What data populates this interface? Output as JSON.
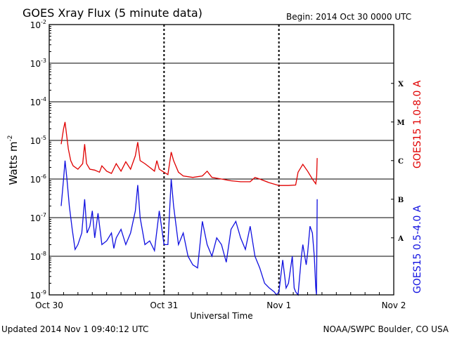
{
  "title": "GOES Xray Flux (5 minute data)",
  "begin_label": "Begin:  2014 Oct 30 0000 UTC",
  "updated": "Updated 2014 Nov  1 09:40:12 UTC",
  "credit": "NOAA/SWPC Boulder, CO USA",
  "colors": {
    "long": "#e00000",
    "short": "#1010e0",
    "axis": "#000000"
  },
  "chart_data": {
    "type": "line",
    "title": "GOES Xray Flux (5 minute data)",
    "xlabel": "Universal Time",
    "ylabel_base": "Watts m",
    "ylabel_sup": "-2",
    "yscale": "log",
    "ylim": [
      1e-09,
      0.01
    ],
    "xlim_hours": [
      0,
      72
    ],
    "grid": "horizontal",
    "x_ticks": [
      {
        "label": "Oct 30",
        "hour": 0
      },
      {
        "label": "Oct 31",
        "hour": 24
      },
      {
        "label": "Nov 1",
        "hour": 48
      },
      {
        "label": "Nov 2",
        "hour": 72
      }
    ],
    "y_ticks": [
      {
        "base": "10",
        "exp": "-9",
        "value": 1e-09
      },
      {
        "base": "10",
        "exp": "-8",
        "value": 1e-08
      },
      {
        "base": "10",
        "exp": "-7",
        "value": 1e-07
      },
      {
        "base": "10",
        "exp": "-6",
        "value": 1e-06
      },
      {
        "base": "10",
        "exp": "-5",
        "value": 1e-05
      },
      {
        "base": "10",
        "exp": "-4",
        "value": 0.0001
      },
      {
        "base": "10",
        "exp": "-3",
        "value": 0.001
      },
      {
        "base": "10",
        "exp": "-2",
        "value": 0.01
      }
    ],
    "flare_classes": [
      {
        "label": "A",
        "value": 3e-08
      },
      {
        "label": "B",
        "value": 3e-07
      },
      {
        "label": "C",
        "value": 3e-06
      },
      {
        "label": "M",
        "value": 3e-05
      },
      {
        "label": "X",
        "value": 0.0003
      }
    ],
    "series": [
      {
        "name": "GOES15 1.0-8.0 A",
        "color": "#e00000",
        "points": [
          [
            2.5,
            8e-06
          ],
          [
            3.0,
            2e-05
          ],
          [
            3.3,
            3e-05
          ],
          [
            3.6,
            1.5e-05
          ],
          [
            4.0,
            6e-06
          ],
          [
            4.5,
            3e-06
          ],
          [
            5.0,
            2.2e-06
          ],
          [
            6.0,
            1.8e-06
          ],
          [
            7.0,
            2.5e-06
          ],
          [
            7.4,
            8e-06
          ],
          [
            7.8,
            2.5e-06
          ],
          [
            8.5,
            1.8e-06
          ],
          [
            9.5,
            1.7e-06
          ],
          [
            10.5,
            1.5e-06
          ],
          [
            11.0,
            2.2e-06
          ],
          [
            12.0,
            1.6e-06
          ],
          [
            13.0,
            1.4e-06
          ],
          [
            14.0,
            2.5e-06
          ],
          [
            15.0,
            1.6e-06
          ],
          [
            16.0,
            2.8e-06
          ],
          [
            17.0,
            1.8e-06
          ],
          [
            18.0,
            4e-06
          ],
          [
            18.5,
            9e-06
          ],
          [
            19.0,
            3e-06
          ],
          [
            20.0,
            2.5e-06
          ],
          [
            21.0,
            2e-06
          ],
          [
            22.0,
            1.6e-06
          ],
          [
            22.5,
            3e-06
          ],
          [
            23.0,
            1.8e-06
          ],
          [
            24.0,
            1.5e-06
          ],
          [
            24.8,
            1.3e-06
          ],
          [
            25.5,
            5e-06
          ],
          [
            26.0,
            3e-06
          ],
          [
            27.0,
            1.5e-06
          ],
          [
            28.0,
            1.2e-06
          ],
          [
            30.0,
            1.1e-06
          ],
          [
            32.0,
            1.2e-06
          ],
          [
            33.0,
            1.6e-06
          ],
          [
            34.0,
            1.1e-06
          ],
          [
            36.0,
            1e-06
          ],
          [
            38.0,
            9e-07
          ],
          [
            40.0,
            8.5e-07
          ],
          [
            42.0,
            8.5e-07
          ],
          [
            43.0,
            1.1e-06
          ],
          [
            44.0,
            1e-06
          ],
          [
            46.0,
            8e-07
          ],
          [
            48.0,
            6.8e-07
          ],
          [
            50.0,
            6.8e-07
          ],
          [
            51.5,
            7e-07
          ],
          [
            52.0,
            1.5e-06
          ],
          [
            53.0,
            2.4e-06
          ],
          [
            54.0,
            1.6e-06
          ],
          [
            55.0,
            1e-06
          ],
          [
            55.7,
            7.5e-07
          ],
          [
            55.9,
            1.2e-06
          ],
          [
            56.0,
            3.5e-06
          ]
        ]
      },
      {
        "name": "GOES15 0.5-4.0 A",
        "color": "#1010e0",
        "points": [
          [
            2.5,
            2e-07
          ],
          [
            3.0,
            1e-06
          ],
          [
            3.3,
            3e-06
          ],
          [
            3.7,
            1e-06
          ],
          [
            4.2,
            2e-07
          ],
          [
            4.8,
            5e-08
          ],
          [
            5.4,
            1.5e-08
          ],
          [
            6.0,
            2e-08
          ],
          [
            6.8,
            4e-08
          ],
          [
            7.4,
            3e-07
          ],
          [
            7.9,
            4e-08
          ],
          [
            8.5,
            6e-08
          ],
          [
            9.0,
            1.5e-07
          ],
          [
            9.5,
            3e-08
          ],
          [
            10.2,
            1.3e-07
          ],
          [
            11.0,
            2e-08
          ],
          [
            12.0,
            2.5e-08
          ],
          [
            13.0,
            4e-08
          ],
          [
            13.5,
            1.6e-08
          ],
          [
            14.0,
            3e-08
          ],
          [
            15.0,
            5e-08
          ],
          [
            16.0,
            2e-08
          ],
          [
            17.0,
            4e-08
          ],
          [
            18.0,
            1.5e-07
          ],
          [
            18.5,
            7e-07
          ],
          [
            19.0,
            1e-07
          ],
          [
            20.0,
            2e-08
          ],
          [
            21.0,
            2.5e-08
          ],
          [
            22.0,
            1.4e-08
          ],
          [
            23.0,
            1.5e-07
          ],
          [
            24.0,
            2e-08
          ],
          [
            24.8,
            2e-08
          ],
          [
            25.5,
            1e-06
          ],
          [
            26.0,
            2e-07
          ],
          [
            27.0,
            2e-08
          ],
          [
            28.0,
            4e-08
          ],
          [
            29.0,
            1e-08
          ],
          [
            30.0,
            6e-09
          ],
          [
            31.0,
            5e-09
          ],
          [
            32.0,
            8e-08
          ],
          [
            33.0,
            2e-08
          ],
          [
            34.0,
            1e-08
          ],
          [
            35.0,
            3e-08
          ],
          [
            36.0,
            2e-08
          ],
          [
            37.0,
            7e-09
          ],
          [
            38.0,
            5e-08
          ],
          [
            39.0,
            8e-08
          ],
          [
            40.0,
            3e-08
          ],
          [
            41.0,
            1.5e-08
          ],
          [
            42.0,
            6e-08
          ],
          [
            43.0,
            1e-08
          ],
          [
            44.0,
            5e-09
          ],
          [
            45.0,
            2e-09
          ],
          [
            46.0,
            1.5e-09
          ],
          [
            47.0,
            1.2e-09
          ],
          [
            47.5,
            1e-09
          ],
          [
            48.0,
            1.2e-09
          ],
          [
            48.8,
            8e-09
          ],
          [
            49.5,
            1.5e-09
          ],
          [
            50.0,
            2e-09
          ],
          [
            50.8,
            1e-08
          ],
          [
            51.2,
            1.5e-09
          ],
          [
            51.5,
            1.2e-09
          ],
          [
            52.0,
            1e-09
          ],
          [
            52.7,
            1e-08
          ],
          [
            53.0,
            2e-08
          ],
          [
            53.7,
            6e-09
          ],
          [
            54.0,
            1.2e-08
          ],
          [
            54.5,
            6e-08
          ],
          [
            55.0,
            4e-08
          ],
          [
            55.4,
            1e-08
          ],
          [
            55.7,
            1.5e-09
          ],
          [
            55.85,
            1e-09
          ],
          [
            55.95,
            4e-08
          ],
          [
            56.0,
            3e-07
          ]
        ]
      }
    ]
  }
}
